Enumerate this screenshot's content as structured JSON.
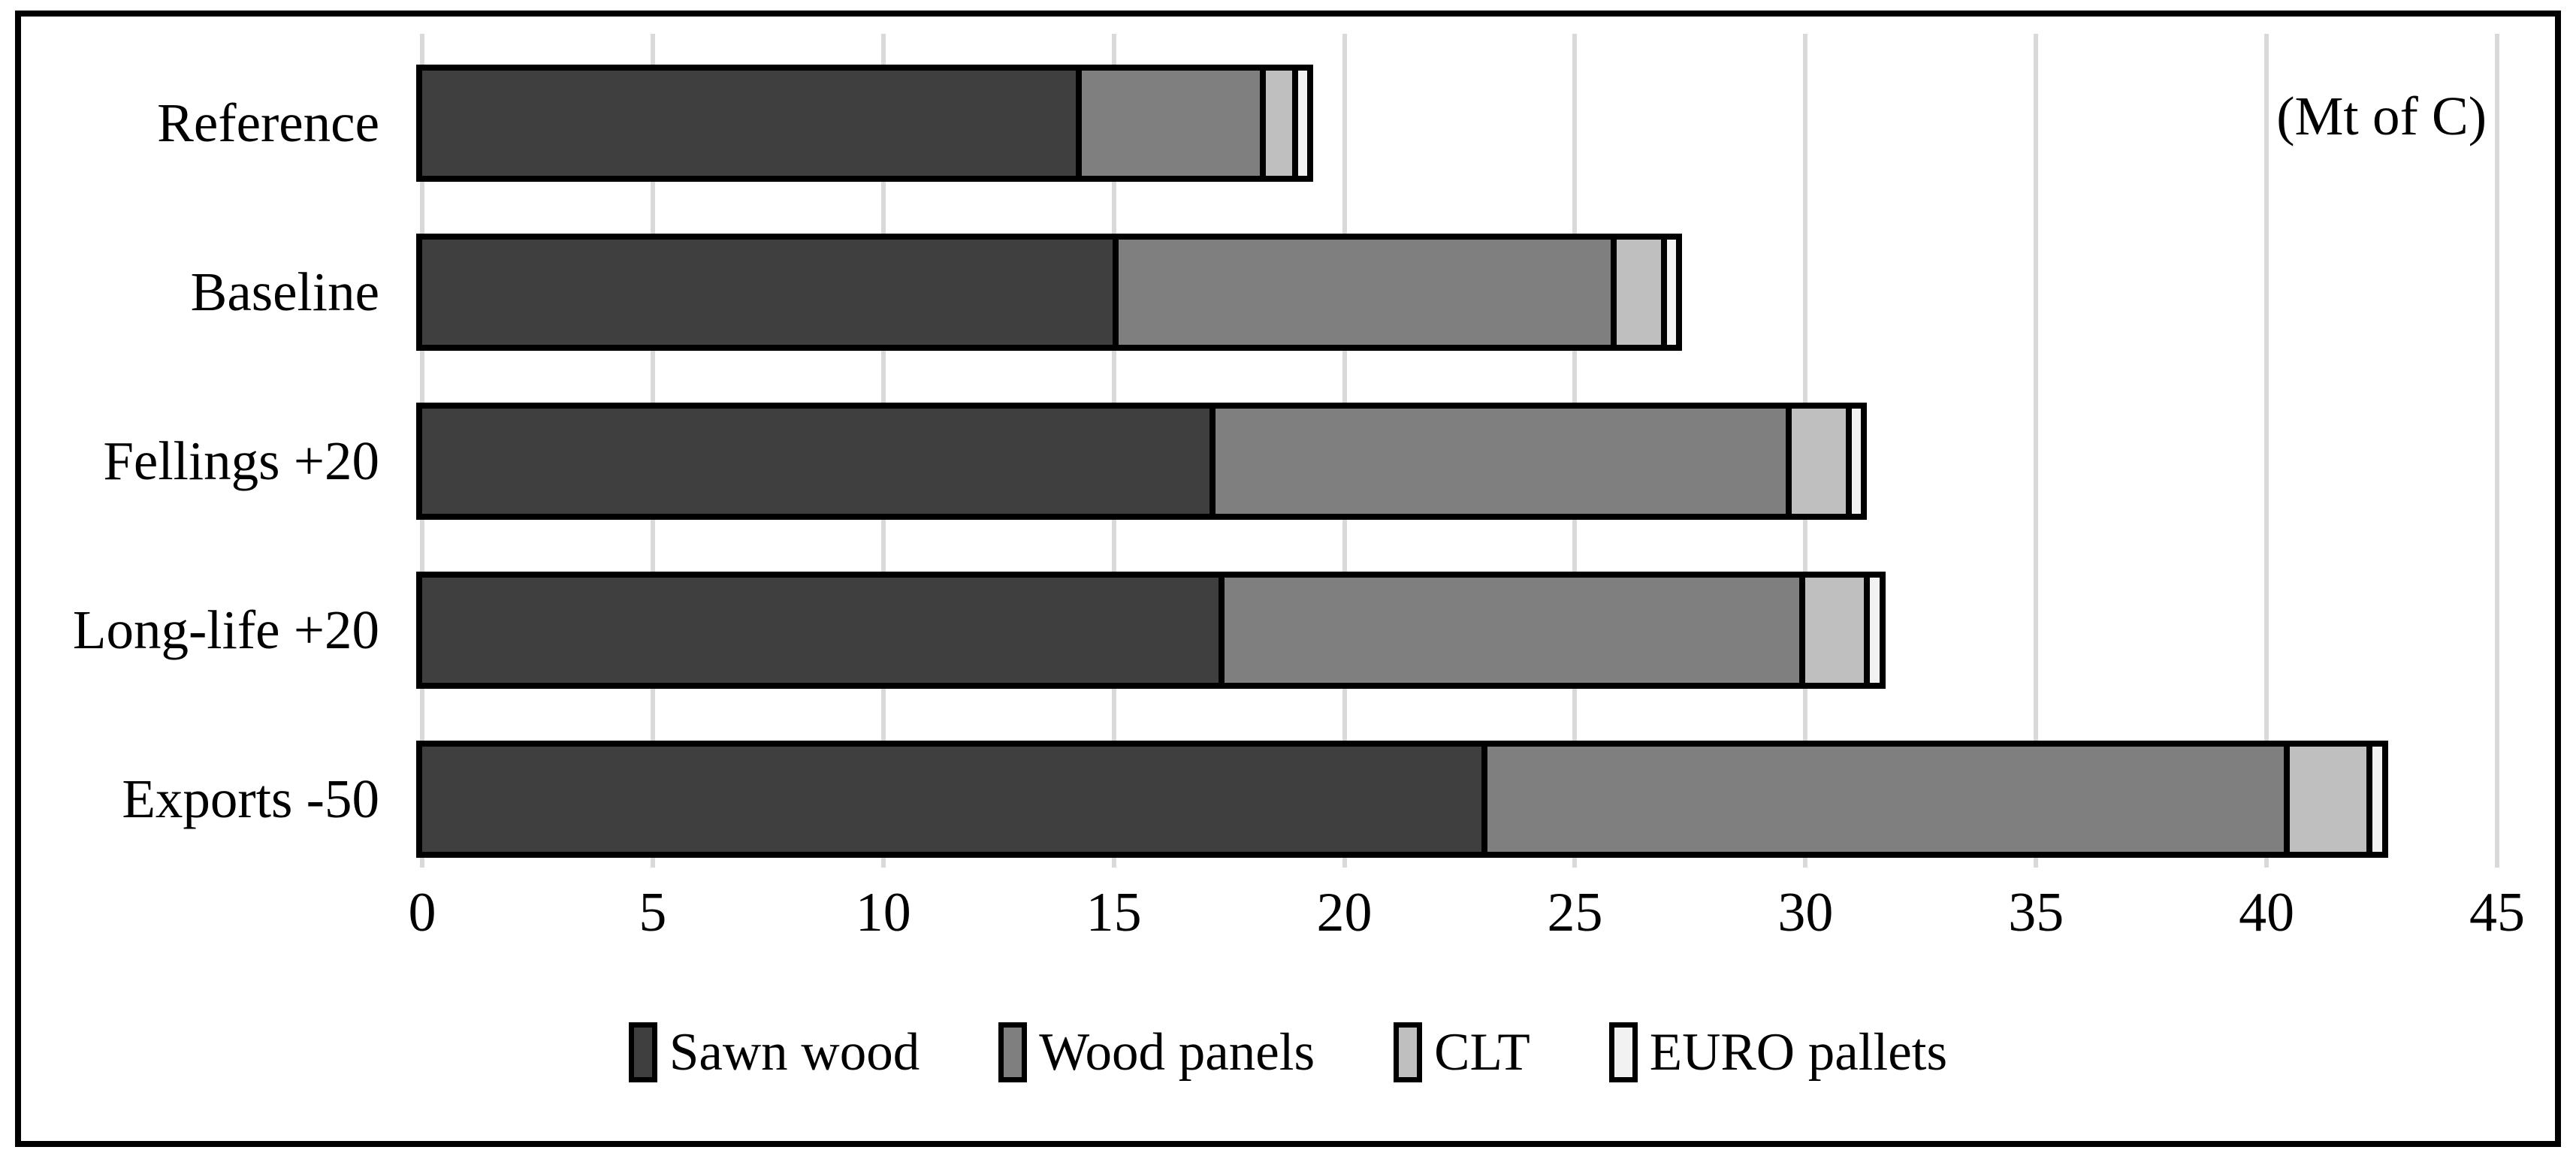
{
  "chart_data": {
    "type": "bar",
    "orientation": "horizontal",
    "stacked": true,
    "title": "",
    "annotation": "(Mt of C)",
    "categories": [
      "Reference",
      "Baseline",
      "Fellings +20",
      "Long-life +20",
      "Exports -50"
    ],
    "series": [
      {
        "name": "Sawn wood",
        "color": "#3f3f3f",
        "values": [
          14.3,
          15.1,
          17.2,
          17.4,
          23.1
        ]
      },
      {
        "name": "Wood panels",
        "color": "#7f7f7f",
        "values": [
          4.0,
          10.8,
          12.5,
          12.6,
          17.4
        ]
      },
      {
        "name": "CLT",
        "color": "#bfbfbf",
        "values": [
          0.7,
          1.1,
          1.3,
          1.4,
          1.8
        ]
      },
      {
        "name": "EURO pallets",
        "color": "#f2f2f2",
        "values": [
          0.2,
          0.2,
          0.2,
          0.2,
          0.2
        ]
      }
    ],
    "totals": [
      19.2,
      27.2,
      31.2,
      31.6,
      42.5
    ],
    "xlabel": "",
    "ylabel": "",
    "xlim": [
      0,
      45
    ],
    "x_ticks": [
      0,
      5,
      10,
      15,
      20,
      25,
      30,
      35,
      40,
      45
    ],
    "grid": "vertical",
    "legend_position": "bottom",
    "colors": {
      "gridline": "#d9d9d9",
      "bar_border": "#000000",
      "frame_border": "#000000",
      "background": "#ffffff",
      "text": "#000000"
    }
  }
}
